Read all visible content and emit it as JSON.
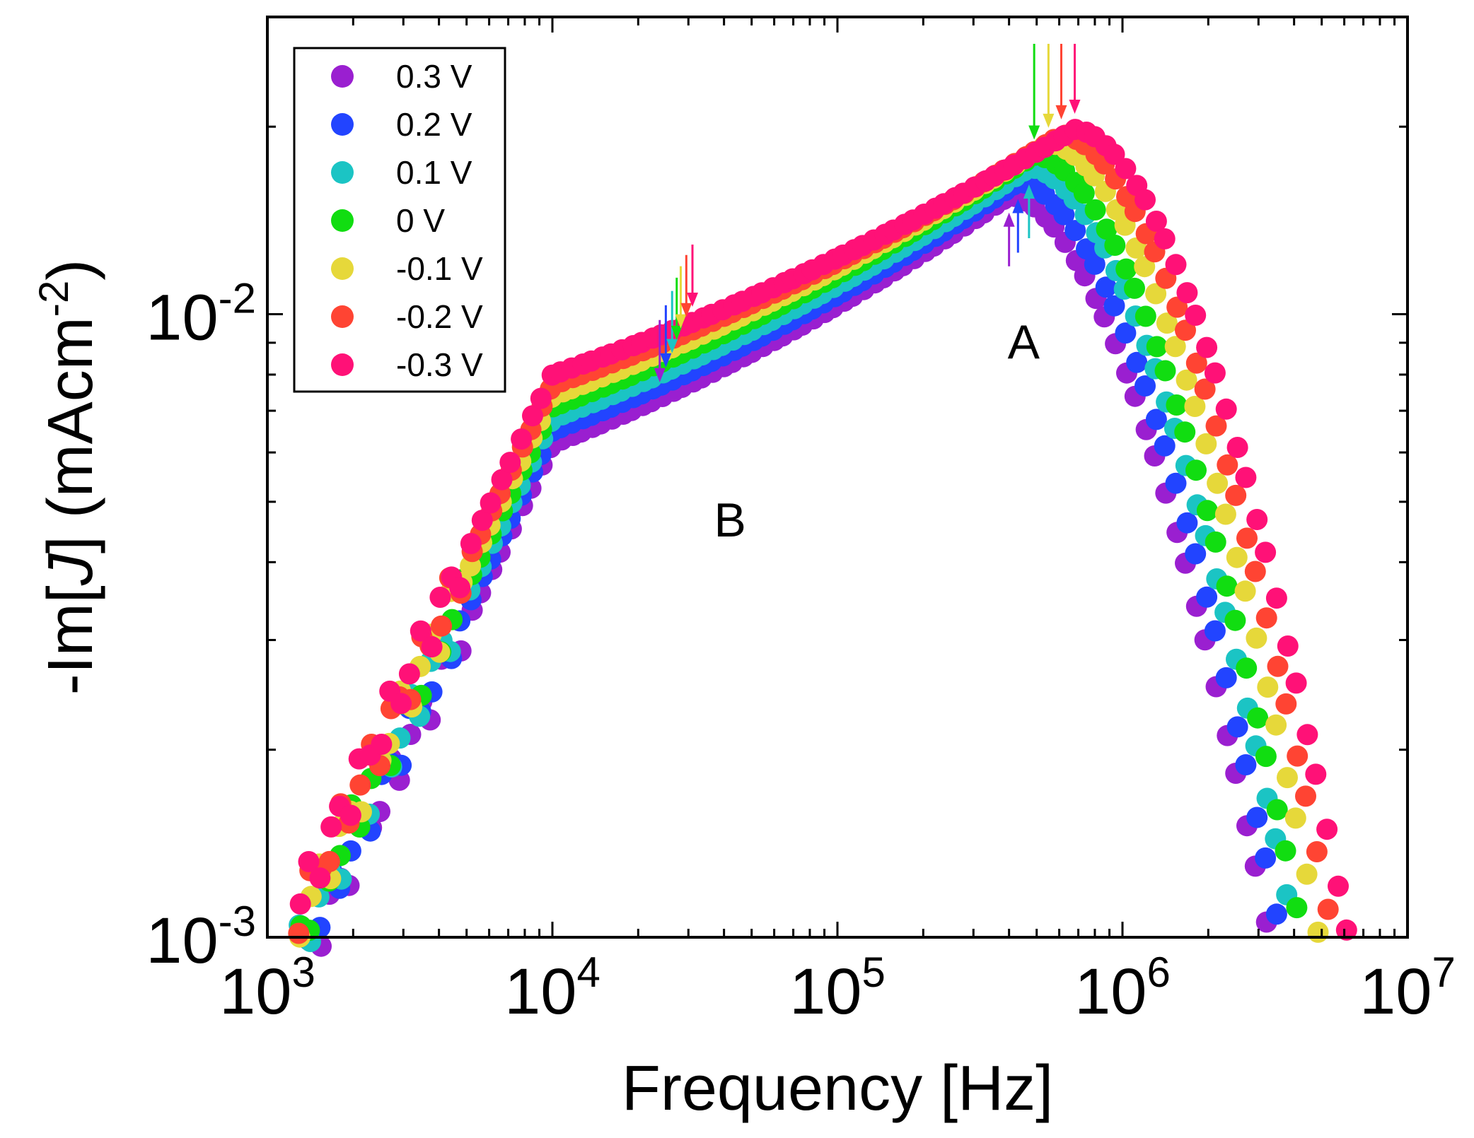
{
  "chart_data": {
    "type": "scatter",
    "xlabel": "Frequency [Hz]",
    "ylabel_parts": {
      "pre": "-Im[",
      "italic": "J",
      "post": "] (mAcm",
      "sup": "-2",
      "close": ")"
    },
    "xscale": "log",
    "yscale": "log",
    "xlim": [
      1000,
      10000000
    ],
    "ylim": [
      0.001,
      0.03
    ],
    "x_ticks": [
      {
        "value": 1000,
        "base": "10",
        "exp": "3"
      },
      {
        "value": 10000,
        "base": "10",
        "exp": "4"
      },
      {
        "value": 100000,
        "base": "10",
        "exp": "5"
      },
      {
        "value": 1000000,
        "base": "10",
        "exp": "6"
      },
      {
        "value": 10000000,
        "base": "10",
        "exp": "7"
      }
    ],
    "y_ticks": [
      {
        "value": 0.001,
        "base": "10",
        "exp": "-3"
      },
      {
        "value": 0.01,
        "base": "10",
        "exp": "-2"
      }
    ],
    "legend_position": "top-left",
    "peak_A": 0.0155,
    "series": [
      {
        "name": "0.3 V",
        "color": "#9A1FD0",
        "peak_freq": 400000,
        "peak_height": 0.0155,
        "shoulder": 0.0062,
        "arrow_A": "up",
        "arrow_B_freq": 23800
      },
      {
        "name": "0.2 V",
        "color": "#2244FF",
        "peak_freq": 430000,
        "peak_height": 0.0163,
        "shoulder": 0.0065,
        "arrow_A": "up",
        "arrow_B_freq": 25000
      },
      {
        "name": "0.1 V",
        "color": "#1BC4C4",
        "peak_freq": 470000,
        "peak_height": 0.0172,
        "shoulder": 0.0068,
        "arrow_A": "up",
        "arrow_B_freq": 26300
      },
      {
        "name": "0 V",
        "color": "#11DD11",
        "peak_freq": 490000,
        "peak_height": 0.018,
        "shoulder": 0.0071,
        "arrow_A": "down",
        "arrow_B_freq": 27300
      },
      {
        "name": "-0.1 V",
        "color": "#E6D83A",
        "peak_freq": 550000,
        "peak_height": 0.0188,
        "shoulder": 0.0074,
        "arrow_A": "down",
        "arrow_B_freq": 28200
      },
      {
        "name": "-0.2 V",
        "color": "#FF4433",
        "peak_freq": 610000,
        "peak_height": 0.0194,
        "shoulder": 0.0077,
        "arrow_A": "down",
        "arrow_B_freq": 29500
      },
      {
        "name": "-0.3 V",
        "color": "#FF1177",
        "peak_freq": 680000,
        "peak_height": 0.0198,
        "shoulder": 0.008,
        "arrow_A": "down",
        "arrow_B_freq": 31000
      }
    ],
    "annotations": [
      {
        "text": "A",
        "color": "#FF0000",
        "x": 450000,
        "y": 0.0085
      },
      {
        "text": "B",
        "color": "#1AA3E8",
        "x": 42000,
        "y": 0.0044
      }
    ]
  }
}
